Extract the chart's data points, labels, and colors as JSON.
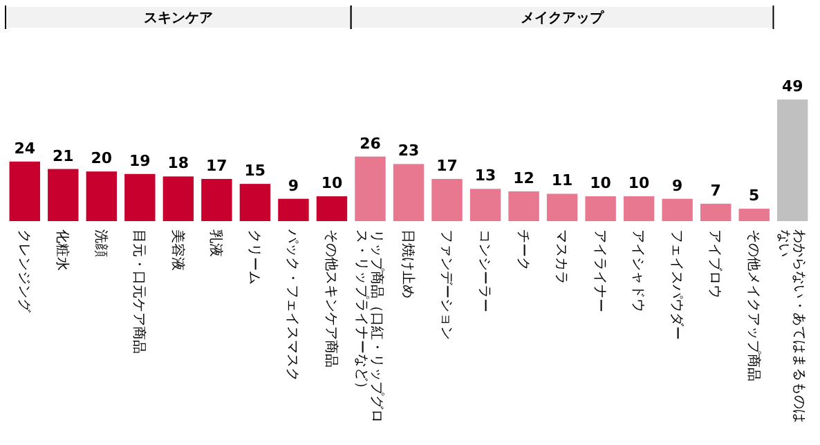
{
  "chart_data": {
    "type": "bar",
    "categories": [
      "クレンジング",
      "化粧水",
      "洗顔",
      "目元・口元ケア商品",
      "美容液",
      "乳液",
      "クリーム",
      "パック・フェイスマスク",
      "その他スキンケア商品",
      "リップ商品（口紅・リップグロス・リップライナーなど）",
      "日焼け止め",
      "ファンデーション",
      "コンシーラー",
      "チーク",
      "マスカラ",
      "アイライナー",
      "アイシャドウ",
      "フェイスパウダー",
      "アイブロウ",
      "その他メイクアップ商品",
      "わからない・あてはまるものはない"
    ],
    "values": [
      24,
      21,
      20,
      19,
      18,
      17,
      15,
      9,
      10,
      26,
      23,
      17,
      13,
      12,
      11,
      10,
      10,
      9,
      7,
      5,
      49
    ],
    "colors": [
      "#c8002d",
      "#c8002d",
      "#c8002d",
      "#c8002d",
      "#c8002d",
      "#c8002d",
      "#c8002d",
      "#c8002d",
      "#c8002d",
      "#e8788f",
      "#e8788f",
      "#e8788f",
      "#e8788f",
      "#e8788f",
      "#e8788f",
      "#e8788f",
      "#e8788f",
      "#e8788f",
      "#e8788f",
      "#e8788f",
      "#c0c0c0"
    ],
    "annotations": [
      "スキンケア",
      "メイクアップ"
    ],
    "data_labels": true
  }
}
